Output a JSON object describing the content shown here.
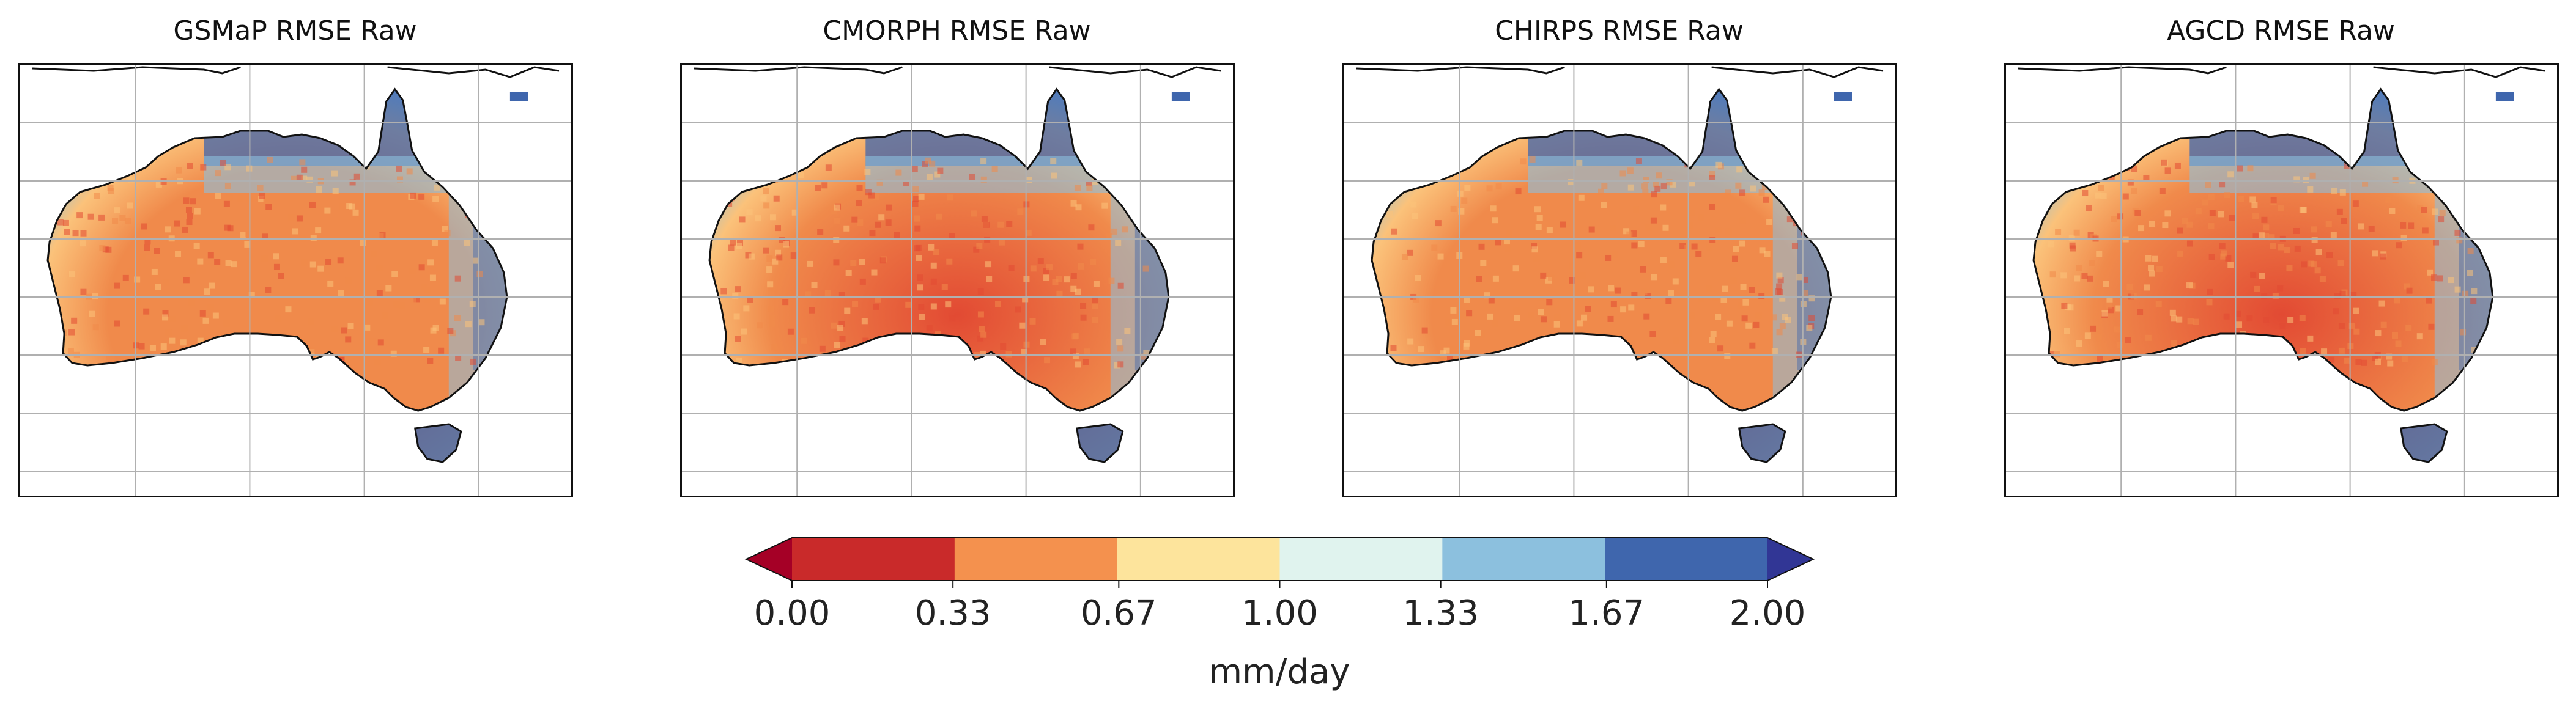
{
  "panels": [
    {
      "title": "GSMaP RMSE Raw",
      "variant": 0
    },
    {
      "title": "CMORPH RMSE Raw",
      "variant": 1
    },
    {
      "title": "CHIRPS RMSE Raw",
      "variant": 2
    },
    {
      "title": "AGCD RMSE Raw",
      "variant": 3
    }
  ],
  "colorbar": {
    "unit": "mm/day",
    "ticks": [
      "0.00",
      "0.33",
      "0.67",
      "1.00",
      "1.33",
      "1.67",
      "2.00"
    ],
    "bins": [
      "#c92a2a",
      "#f4914e",
      "#fde49c",
      "#e0f3ee",
      "#8cc0de",
      "#3f66ad"
    ],
    "under_color": "#a50026",
    "over_color": "#313695",
    "extend": "both",
    "range": [
      0,
      2
    ]
  },
  "colors": {
    "coastline": "#111111",
    "grid": "#b0b0b0",
    "land_interior": "#f08a4b",
    "land_dry": "#e24a33",
    "land_mid": "#fbc27a",
    "coast_wet": "#3f66ad",
    "coast_mid": "#8cc0de"
  }
}
